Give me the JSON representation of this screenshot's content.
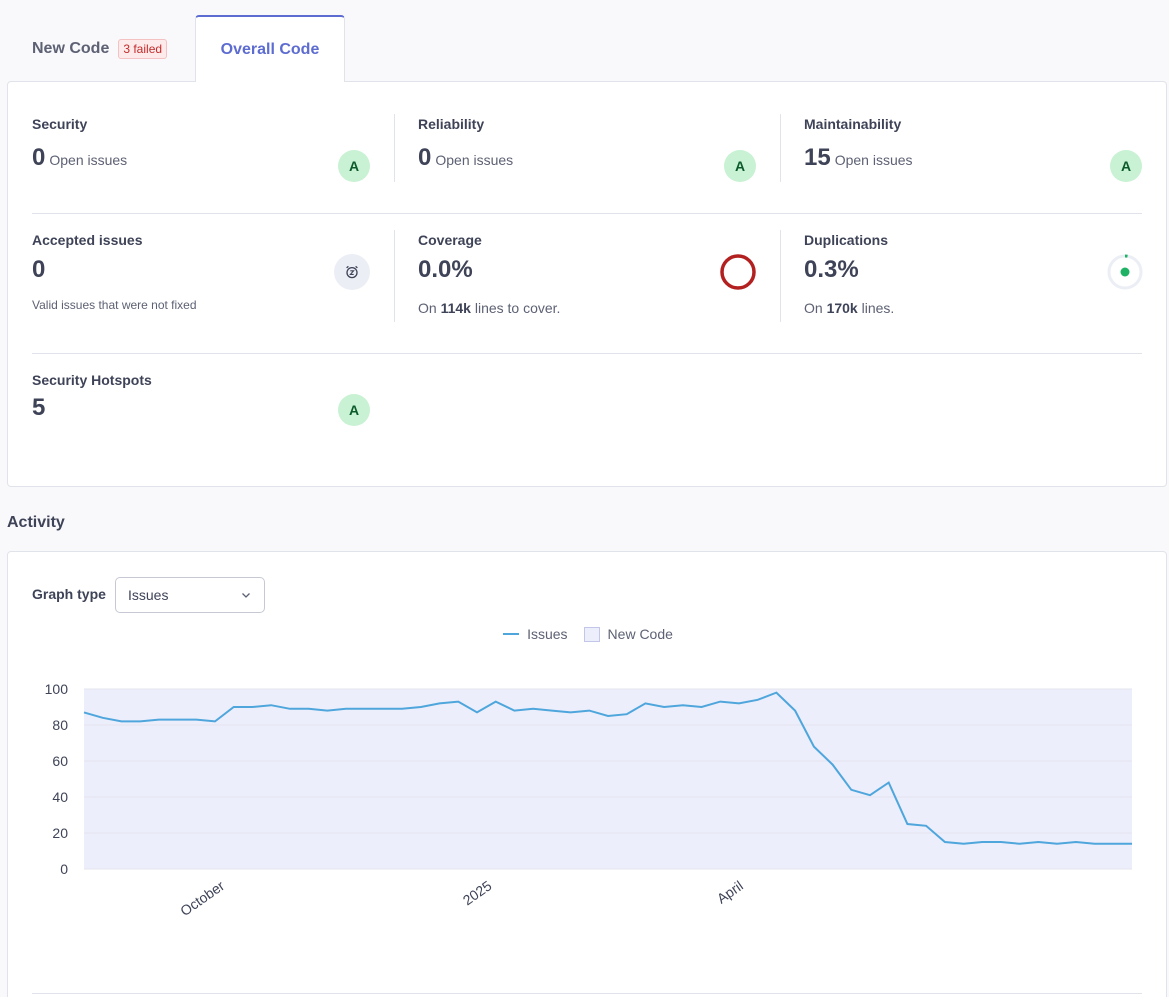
{
  "tabs": {
    "new_code": "New Code",
    "new_code_badge": "3 failed",
    "overall_code": "Overall Code"
  },
  "metrics": {
    "security": {
      "title": "Security",
      "value": "0",
      "unit": "Open issues",
      "grade": "A"
    },
    "reliability": {
      "title": "Reliability",
      "value": "0",
      "unit": "Open issues",
      "grade": "A"
    },
    "maintainability": {
      "title": "Maintainability",
      "value": "15",
      "unit": "Open issues",
      "grade": "A"
    },
    "accepted": {
      "title": "Accepted issues",
      "value": "0",
      "description": "Valid issues that were not fixed"
    },
    "coverage": {
      "title": "Coverage",
      "value": "0.0%",
      "sub_prefix": "On",
      "sub_bold": "114k",
      "sub_suffix": "lines to cover."
    },
    "duplications": {
      "title": "Duplications",
      "value": "0.3%",
      "sub_prefix": "On",
      "sub_bold": "170k",
      "sub_suffix": "lines."
    },
    "hotspots": {
      "title": "Security Hotspots",
      "value": "5",
      "grade": "A"
    }
  },
  "activity": {
    "title": "Activity",
    "graph_type_label": "Graph type",
    "graph_type_value": "Issues",
    "legend_issues": "Issues",
    "legend_new_code": "New Code"
  },
  "colors": {
    "accent": "#5d6cd0",
    "grade_a_bg": "#c8f2d3",
    "coverage_ring": "#b32020",
    "duplication_dot": "#1fb264",
    "series_line": "#4ea6dc",
    "new_code_area": "#edeefb"
  },
  "icons": {
    "chevron": "chevron-down-icon",
    "clock": "alarm-clock-icon"
  },
  "chart_data": {
    "type": "line",
    "title": "",
    "x_ticks": [
      "October",
      "2025",
      "April"
    ],
    "y_ticks": [
      0,
      20,
      40,
      60,
      80,
      100
    ],
    "ylim": [
      0,
      100
    ],
    "series": [
      {
        "name": "Issues",
        "values": [
          87,
          84,
          82,
          82,
          83,
          83,
          83,
          82,
          90,
          90,
          91,
          89,
          89,
          88,
          89,
          89,
          89,
          89,
          90,
          92,
          93,
          87,
          93,
          88,
          89,
          88,
          87,
          88,
          85,
          86,
          92,
          90,
          91,
          90,
          93,
          92,
          94,
          98,
          88,
          68,
          58,
          44,
          41,
          48,
          25,
          24,
          15,
          14,
          15,
          15,
          14,
          15,
          14,
          15,
          14,
          14,
          14
        ]
      }
    ],
    "new_code_period": "full range shaded"
  }
}
